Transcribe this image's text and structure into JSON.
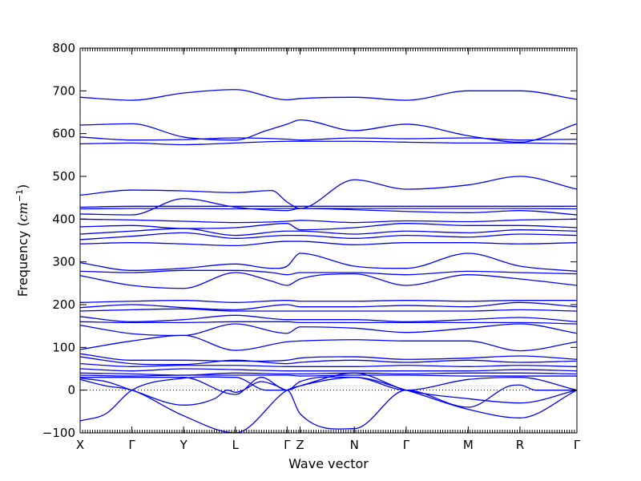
{
  "chart_data": {
    "type": "line",
    "title": "",
    "xlabel": "Wave vector",
    "ylabel": {
      "prefix": "Frequency (",
      "unit_symbol": "cm",
      "unit_exponent": "−1",
      "suffix": ")"
    },
    "ylim": [
      -100,
      800
    ],
    "yticks": [
      -100,
      0,
      100,
      200,
      300,
      400,
      500,
      600,
      700,
      800
    ],
    "ytick_labels": [
      "−100",
      "0",
      "100",
      "200",
      "300",
      "400",
      "500",
      "600",
      "700",
      "800"
    ],
    "xlim": [
      0,
      9.6
    ],
    "xticks": [
      {
        "label": "X",
        "pos": 0
      },
      {
        "label": "Γ",
        "pos": 1
      },
      {
        "label": "Y",
        "pos": 2
      },
      {
        "label": "L",
        "pos": 3
      },
      {
        "label": "Γ",
        "pos": 4
      },
      {
        "label": "Z",
        "pos": 4.25
      },
      {
        "label": "N",
        "pos": 5.3
      },
      {
        "label": "Γ",
        "pos": 6.3
      },
      {
        "label": "M",
        "pos": 7.5
      },
      {
        "label": "R",
        "pos": 8.5
      },
      {
        "label": "Γ",
        "pos": 9.6
      }
    ],
    "zero_line": {
      "y": 0,
      "style": "dotted"
    },
    "grid": false,
    "line_color": "#0000ff",
    "series": [
      {
        "x": [
          0,
          1,
          2,
          3,
          4,
          4.25,
          5.3,
          6.3,
          7.5,
          8.5,
          9.6
        ],
        "y": [
          685,
          678,
          695,
          703,
          679,
          682,
          685,
          678,
          700,
          700,
          680
        ]
      },
      {
        "x": [
          0,
          1,
          2,
          3,
          3.6,
          4,
          4.25,
          5.3,
          6.3,
          7.5,
          8.5,
          9.6
        ],
        "y": [
          620,
          623,
          592,
          585,
          607,
          622,
          632,
          607,
          622,
          595,
          580,
          623
        ]
      },
      {
        "x": [
          0,
          1,
          2,
          3,
          4,
          4.25,
          5.3,
          6.3,
          7.5,
          8.5,
          9.6
        ],
        "y": [
          592,
          585,
          586,
          590,
          587,
          585,
          590,
          588,
          590,
          585,
          587
        ]
      },
      {
        "x": [
          0,
          1,
          2,
          3,
          4,
          4.25,
          5.3,
          6.3,
          7.5,
          8.5,
          9.6
        ],
        "y": [
          576,
          578,
          574,
          578,
          582,
          582,
          582,
          580,
          578,
          578,
          576
        ]
      },
      {
        "x": [
          0,
          1,
          2,
          3,
          3.7,
          4,
          4.25,
          5.3,
          6.3,
          7.5,
          8.5,
          9.6
        ],
        "y": [
          456,
          468,
          466,
          462,
          467,
          440,
          425,
          492,
          470,
          480,
          500,
          470
        ]
      },
      {
        "x": [
          0,
          1,
          2,
          3,
          4,
          4.25,
          5.3,
          6.3,
          7.5,
          8.5,
          9.6
        ],
        "y": [
          428,
          430,
          430,
          430,
          430,
          430,
          430,
          430,
          430,
          430,
          430
        ]
      },
      {
        "x": [
          0,
          1,
          2,
          3,
          4,
          4.25,
          5.3,
          6.3,
          7.5,
          8.5,
          9.6
        ],
        "y": [
          424,
          425,
          425,
          424,
          425,
          425,
          425,
          425,
          425,
          425,
          424
        ]
      },
      {
        "x": [
          0,
          1,
          2,
          3,
          4,
          4.25,
          5.3,
          6.3,
          7.5,
          8.5,
          9.6
        ],
        "y": [
          412,
          410,
          448,
          428,
          420,
          425,
          422,
          418,
          415,
          420,
          410
        ]
      },
      {
        "x": [
          0,
          1,
          2,
          3,
          4,
          4.25,
          5.3,
          6.3,
          7.5,
          8.5,
          9.6
        ],
        "y": [
          400,
          398,
          395,
          392,
          395,
          397,
          392,
          396,
          394,
          398,
          400
        ]
      },
      {
        "x": [
          0,
          1,
          2,
          3,
          4,
          4.25,
          5.3,
          6.3,
          7.5,
          8.5,
          9.6
        ],
        "y": [
          382,
          385,
          378,
          380,
          390,
          375,
          380,
          390,
          385,
          385,
          380
        ]
      },
      {
        "x": [
          0,
          1,
          2,
          3,
          4,
          4.25,
          5.3,
          6.3,
          7.5,
          8.5,
          9.6
        ],
        "y": [
          365,
          372,
          378,
          362,
          372,
          372,
          365,
          372,
          368,
          375,
          372
        ]
      },
      {
        "x": [
          0,
          1,
          2,
          3,
          4,
          4.25,
          5.3,
          6.3,
          7.5,
          8.5,
          9.6
        ],
        "y": [
          352,
          360,
          368,
          355,
          362,
          362,
          355,
          362,
          358,
          365,
          362
        ]
      },
      {
        "x": [
          0,
          1,
          2,
          3,
          4,
          4.25,
          5.3,
          6.3,
          7.5,
          8.5,
          9.6
        ],
        "y": [
          342,
          345,
          342,
          338,
          348,
          348,
          340,
          345,
          345,
          342,
          345
        ]
      },
      {
        "x": [
          0,
          1,
          2,
          3,
          3.7,
          4,
          4.25,
          5.3,
          6.3,
          7.5,
          8.5,
          9.6
        ],
        "y": [
          298,
          280,
          285,
          295,
          285,
          290,
          320,
          290,
          285,
          320,
          290,
          278
        ]
      },
      {
        "x": [
          0,
          1,
          2,
          3,
          3.7,
          4,
          4.25,
          5.3,
          6.3,
          7.5,
          8.5,
          9.6
        ],
        "y": [
          278,
          275,
          280,
          280,
          275,
          270,
          275,
          275,
          270,
          278,
          275,
          272
        ]
      },
      {
        "x": [
          0,
          1,
          2,
          3,
          3.7,
          4,
          4.25,
          5.3,
          6.3,
          7.5,
          8.5,
          9.6
        ],
        "y": [
          268,
          245,
          238,
          275,
          255,
          245,
          260,
          272,
          245,
          270,
          260,
          245
        ]
      },
      {
        "x": [
          0,
          1,
          2,
          3,
          4,
          4.25,
          5.3,
          6.3,
          7.5,
          8.5,
          9.6
        ],
        "y": [
          205,
          208,
          210,
          205,
          210,
          208,
          208,
          210,
          208,
          210,
          210
        ]
      },
      {
        "x": [
          0,
          1,
          2,
          3,
          4,
          4.25,
          5.3,
          6.3,
          7.5,
          8.5,
          9.6
        ],
        "y": [
          193,
          200,
          193,
          188,
          200,
          195,
          195,
          198,
          195,
          205,
          195
        ]
      },
      {
        "x": [
          0,
          1,
          2,
          3,
          4,
          4.25,
          5.3,
          6.3,
          7.5,
          8.5,
          9.6
        ],
        "y": [
          185,
          188,
          190,
          185,
          185,
          185,
          185,
          185,
          185,
          188,
          185
        ]
      },
      {
        "x": [
          0,
          1,
          2,
          3,
          4,
          4.25,
          5.3,
          6.3,
          7.5,
          8.5,
          9.6
        ],
        "y": [
          172,
          160,
          165,
          175,
          165,
          165,
          165,
          160,
          165,
          170,
          160
        ]
      },
      {
        "x": [
          0,
          1,
          2,
          3,
          4,
          4.25,
          5.3,
          6.3,
          7.5,
          8.5,
          9.6
        ],
        "y": [
          160,
          158,
          158,
          160,
          160,
          158,
          158,
          158,
          158,
          158,
          155
        ]
      },
      {
        "x": [
          0,
          1,
          2,
          3,
          4,
          4.25,
          5.3,
          6.3,
          7.5,
          8.5,
          9.6
        ],
        "y": [
          152,
          132,
          128,
          155,
          133,
          148,
          145,
          135,
          145,
          155,
          133
        ]
      },
      {
        "x": [
          0,
          1,
          2,
          3,
          4,
          4.25,
          5.3,
          6.3,
          7.5,
          8.5,
          9.6
        ],
        "y": [
          95,
          115,
          128,
          93,
          113,
          115,
          118,
          115,
          115,
          92,
          113
        ]
      },
      {
        "x": [
          0,
          1,
          2,
          3,
          4,
          4.25,
          5.3,
          6.3,
          7.5,
          8.5,
          9.6
        ],
        "y": [
          85,
          70,
          70,
          68,
          70,
          75,
          78,
          72,
          75,
          80,
          72
        ]
      },
      {
        "x": [
          0,
          1,
          2,
          3,
          4,
          4.25,
          5.3,
          6.3,
          7.5,
          8.5,
          9.6
        ],
        "y": [
          78,
          62,
          60,
          70,
          62,
          65,
          70,
          65,
          70,
          65,
          68
        ]
      },
      {
        "x": [
          0,
          1,
          2,
          3,
          4,
          4.25,
          5.3,
          6.3,
          7.5,
          8.5,
          9.6
        ],
        "y": [
          62,
          55,
          58,
          58,
          55,
          55,
          55,
          58,
          55,
          58,
          55
        ]
      },
      {
        "x": [
          0,
          1,
          2,
          3,
          4,
          4.25,
          5.3,
          6.3,
          7.5,
          8.5,
          9.6
        ],
        "y": [
          50,
          45,
          50,
          48,
          45,
          45,
          45,
          45,
          45,
          48,
          45
        ]
      },
      {
        "x": [
          0,
          1,
          2,
          3,
          4,
          4.25,
          5.3,
          6.3,
          7.5,
          8.5,
          9.6
        ],
        "y": [
          40,
          38,
          35,
          40,
          38,
          38,
          40,
          38,
          40,
          40,
          38
        ]
      },
      {
        "x": [
          0,
          1,
          2,
          3,
          4,
          4.25,
          5.3,
          6.3,
          7.5,
          8.5,
          9.6
        ],
        "y": [
          35,
          33,
          35,
          35,
          35,
          33,
          35,
          35,
          33,
          33,
          33
        ]
      },
      {
        "x": [
          0,
          0.5,
          1,
          2,
          2.6,
          2.85,
          3,
          3.15,
          3.5,
          3.8,
          4,
          4.25,
          5.3,
          6.3,
          7.5,
          8.5,
          9.6
        ],
        "y": [
          28,
          20,
          0,
          -35,
          -20,
          0,
          -5,
          0,
          20,
          10,
          0,
          10,
          30,
          0,
          -45,
          -65,
          0
        ]
      },
      {
        "x": [
          0,
          0.5,
          1,
          2,
          3,
          3.6,
          4,
          4.25,
          5.3,
          6.3,
          7.5,
          8.3,
          8.5,
          8.8,
          9.6
        ],
        "y": [
          -72,
          -55,
          0,
          28,
          30,
          0,
          0,
          -55,
          -90,
          0,
          -40,
          10,
          12,
          0,
          0
        ]
      },
      {
        "x": [
          0,
          0.5,
          1,
          2,
          3,
          4,
          4.25,
          5.3,
          6.3,
          7.5,
          8.5,
          9.6
        ],
        "y": [
          25,
          10,
          0,
          -60,
          -100,
          0,
          10,
          40,
          0,
          -20,
          -30,
          0
        ]
      },
      {
        "x": [
          0,
          1,
          2,
          3,
          3.5,
          4,
          4.25,
          5.3,
          6.3,
          7.5,
          8.5,
          9.6
        ],
        "y": [
          30,
          30,
          30,
          -10,
          30,
          0,
          20,
          30,
          0,
          25,
          30,
          0
        ]
      }
    ]
  }
}
